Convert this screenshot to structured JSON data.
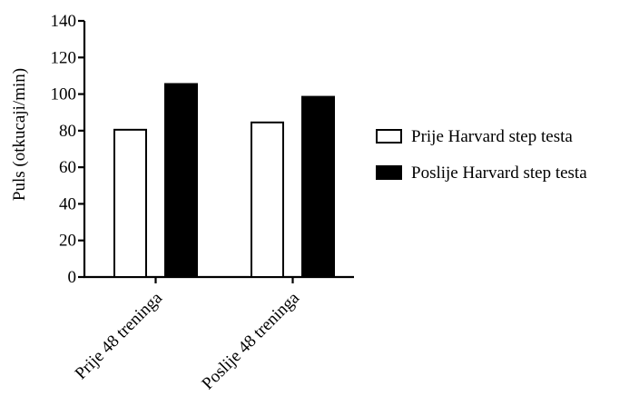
{
  "chart_data": {
    "type": "bar",
    "categories": [
      "Prije 48 treninga",
      "Poslije 48 treninga"
    ],
    "series": [
      {
        "name": "Prije Harvard step testa",
        "values": [
          81,
          85
        ],
        "fill": "#ffffff",
        "stroke": "#000000"
      },
      {
        "name": "Poslije Harvard step testa",
        "values": [
          106,
          99
        ],
        "fill": "#000000",
        "stroke": "#000000"
      }
    ],
    "title": "",
    "xlabel": "",
    "ylabel": "Puls (otkucaji/min)",
    "ylim": [
      0,
      140
    ],
    "yticks": [
      0,
      20,
      40,
      60,
      80,
      100,
      120,
      140
    ],
    "grid": false,
    "legend_position": "right",
    "category_label_rotation": "-45deg"
  }
}
